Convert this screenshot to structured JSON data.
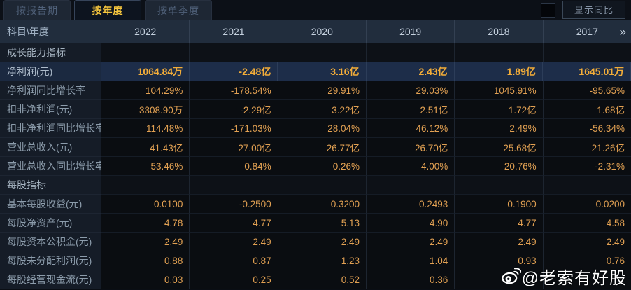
{
  "tabs": [
    {
      "label": "按报告期",
      "active": false
    },
    {
      "label": "按年度",
      "active": true
    },
    {
      "label": "按单季度",
      "active": false
    }
  ],
  "controls": {
    "show_yoy_label": "显示同比",
    "show_yoy_checked": false
  },
  "table": {
    "corner_label": "科目\\年度",
    "years": [
      "2022",
      "2021",
      "2020",
      "2019",
      "2018",
      "2017"
    ],
    "more_icon": "»",
    "rows": [
      {
        "label": "成长能力指标",
        "type": "section",
        "values": [
          "",
          "",
          "",
          "",
          "",
          ""
        ]
      },
      {
        "label": "净利润(元)",
        "type": "highlight",
        "values": [
          "1064.84万",
          "-2.48亿",
          "3.16亿",
          "2.43亿",
          "1.89亿",
          "1645.01万"
        ]
      },
      {
        "label": "净利润同比增长率",
        "type": "data",
        "values": [
          "104.29%",
          "-178.54%",
          "29.91%",
          "29.03%",
          "1045.91%",
          "-95.65%"
        ]
      },
      {
        "label": "扣非净利润(元)",
        "type": "data",
        "values": [
          "3308.90万",
          "-2.29亿",
          "3.22亿",
          "2.51亿",
          "1.72亿",
          "1.68亿"
        ]
      },
      {
        "label": "扣非净利润同比增长率",
        "type": "data",
        "values": [
          "114.48%",
          "-171.03%",
          "28.04%",
          "46.12%",
          "2.49%",
          "-56.34%"
        ]
      },
      {
        "label": "营业总收入(元)",
        "type": "data",
        "values": [
          "41.43亿",
          "27.00亿",
          "26.77亿",
          "26.70亿",
          "25.68亿",
          "21.26亿"
        ]
      },
      {
        "label": "营业总收入同比增长率",
        "type": "data",
        "values": [
          "53.46%",
          "0.84%",
          "0.26%",
          "4.00%",
          "20.76%",
          "-2.31%"
        ]
      },
      {
        "label": "每股指标",
        "type": "section",
        "values": [
          "",
          "",
          "",
          "",
          "",
          ""
        ]
      },
      {
        "label": "基本每股收益(元)",
        "type": "data",
        "values": [
          "0.0100",
          "-0.2500",
          "0.3200",
          "0.2493",
          "0.1900",
          "0.0200"
        ]
      },
      {
        "label": "每股净资产(元)",
        "type": "data",
        "values": [
          "4.78",
          "4.77",
          "5.13",
          "4.90",
          "4.77",
          "4.58"
        ]
      },
      {
        "label": "每股资本公积金(元)",
        "type": "data",
        "values": [
          "2.49",
          "2.49",
          "2.49",
          "2.49",
          "2.49",
          "2.49"
        ]
      },
      {
        "label": "每股未分配利润(元)",
        "type": "data",
        "values": [
          "0.88",
          "0.87",
          "1.23",
          "1.04",
          "0.93",
          "0.76"
        ]
      },
      {
        "label": "每股经营现金流(元)",
        "type": "data",
        "values": [
          "0.03",
          "0.25",
          "0.52",
          "0.36",
          "",
          ""
        ]
      }
    ]
  },
  "watermark": {
    "handle": "@老索有好股",
    "icon": "weibo-icon"
  },
  "colors": {
    "accent_gold": "#f6c63e",
    "value_orange": "#e2a153",
    "highlight_row_bg": "#1d2d49",
    "header_bg": "#212d3d",
    "label_col_bg": "#151c27",
    "page_bg": "#0a0e14"
  }
}
